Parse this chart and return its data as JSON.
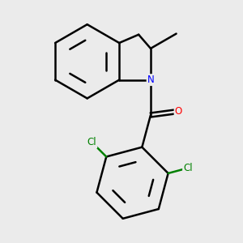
{
  "background_color": "#ebebeb",
  "bond_color": "#000000",
  "bond_width": 1.8,
  "atom_colors": {
    "N": "#0000ff",
    "O": "#ff0000",
    "Cl": "#008000",
    "C": "#000000"
  },
  "font_size": 8.5,
  "figsize": [
    3.0,
    3.0
  ],
  "dpi": 100
}
